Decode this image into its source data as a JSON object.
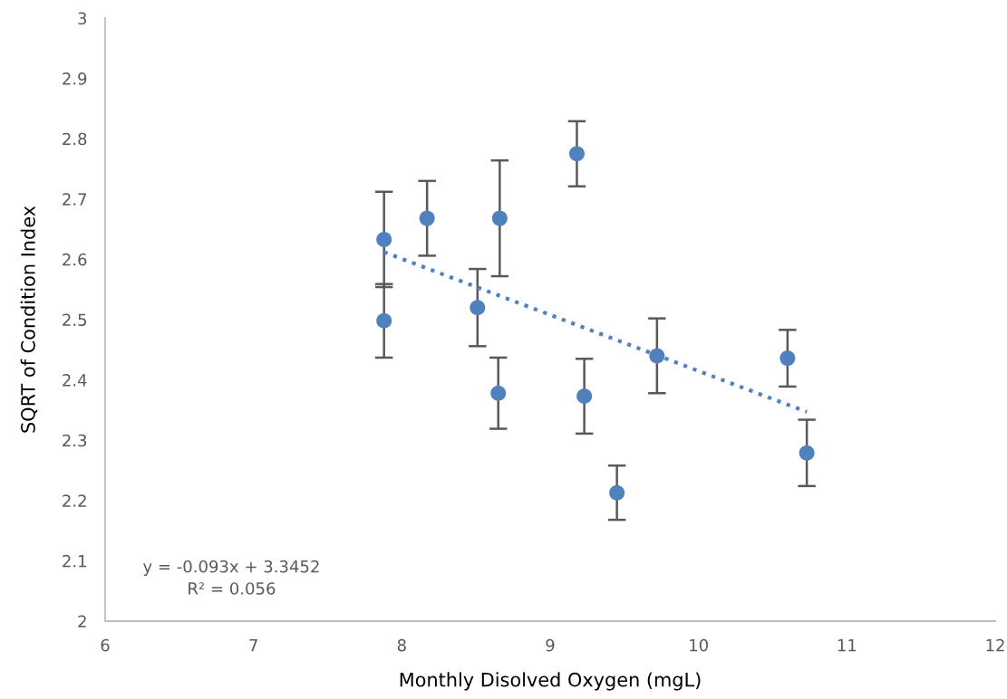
{
  "chart_data": {
    "type": "scatter",
    "xlabel": "Monthly Disolved Oxygen (mgL)",
    "ylabel": "SQRT of Condition Index",
    "series": [
      {
        "color": "#4f81bd",
        "marker": "circle",
        "x": [
          7.88,
          7.88,
          8.17,
          8.51,
          8.65,
          8.66,
          9.18,
          9.23,
          9.45,
          9.72,
          10.6,
          10.73
        ],
        "values": [
          2.633,
          2.498,
          2.668,
          2.52,
          2.378,
          2.668,
          2.775,
          2.373,
          2.213,
          2.44,
          2.436,
          2.279
        ],
        "errors": [
          0.079,
          0.061,
          0.062,
          0.064,
          0.059,
          0.096,
          0.054,
          0.062,
          0.045,
          0.062,
          0.047,
          0.055
        ]
      },
      {
        "type": "line",
        "color": "#4f81bd",
        "marker": "none",
        "line_style": "dotted",
        "x": [
          7.88,
          10.73
        ],
        "values": [
          2.612,
          2.347
        ]
      }
    ],
    "annotations": [
      "y = -0.093x + 3.3452\nR² = 0.056"
    ],
    "xlim": [
      6,
      12
    ],
    "xticks": [
      6,
      7,
      8,
      9,
      10,
      11,
      12
    ],
    "ylim": [
      2,
      3
    ],
    "yticks": [
      2,
      2.1,
      2.2,
      2.3,
      2.4,
      2.5,
      2.6,
      2.7,
      2.8,
      2.9,
      3
    ],
    "grid": false,
    "legend": false
  }
}
